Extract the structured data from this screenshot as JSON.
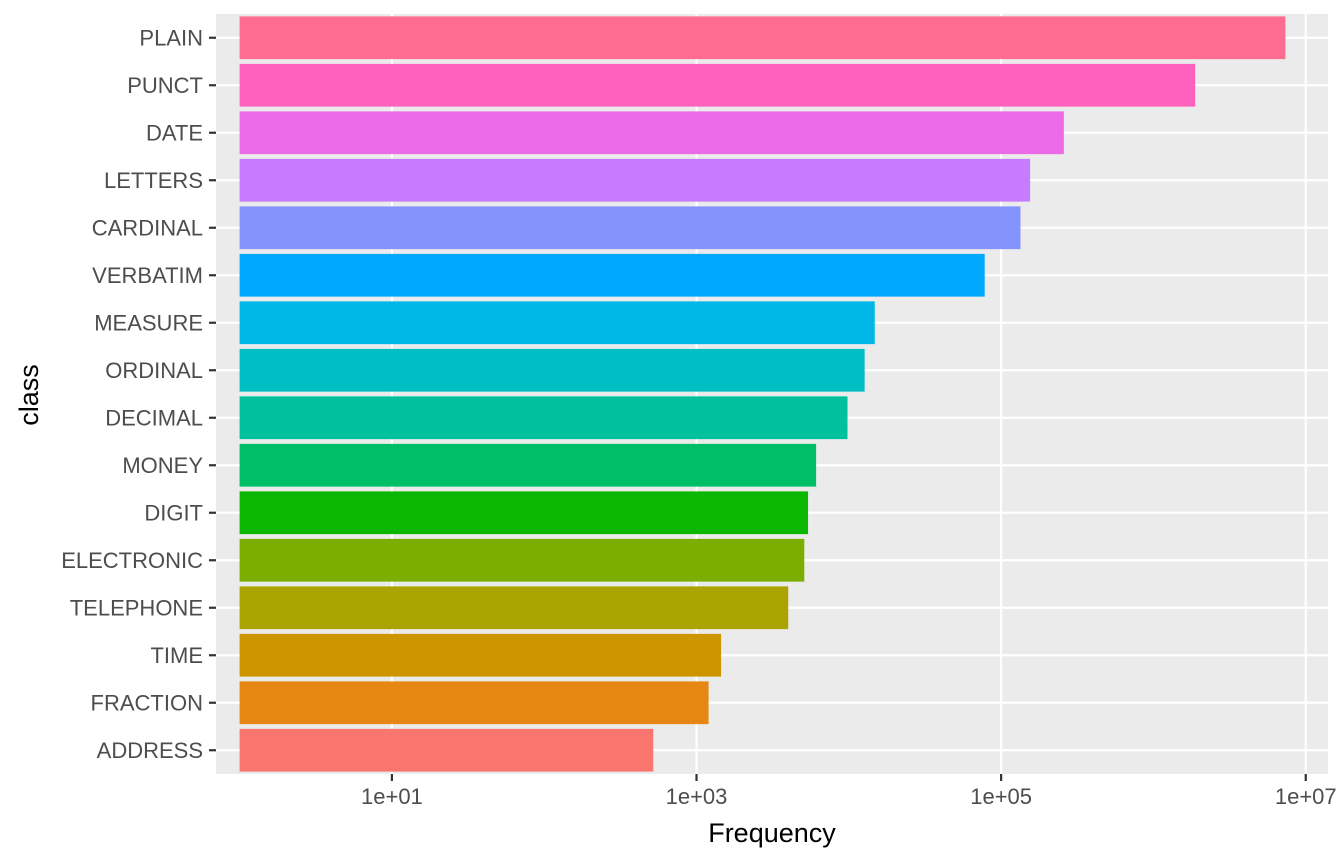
{
  "chart_data": {
    "type": "bar",
    "orientation": "horizontal",
    "xlabel": "Frequency",
    "ylabel": "class",
    "x_scale": "log10",
    "xlim": [
      0.7,
      14000000.0
    ],
    "bar_base": 1,
    "x_ticks": [
      10,
      1000,
      100000,
      10000000
    ],
    "x_tick_labels": [
      "1e+01",
      "1e+03",
      "1e+05",
      "1e+07"
    ],
    "grid": true,
    "legend": "none",
    "categories": [
      "PLAIN",
      "PUNCT",
      "DATE",
      "LETTERS",
      "CARDINAL",
      "VERBATIM",
      "MEASURE",
      "ORDINAL",
      "DECIMAL",
      "MONEY",
      "DIGIT",
      "ELECTRONIC",
      "TELEPHONE",
      "TIME",
      "FRACTION",
      "ADDRESS"
    ],
    "values": [
      7350000,
      1880000,
      258000,
      155000,
      134000,
      78000,
      14800,
      12700,
      9800,
      6100,
      5400,
      5100,
      4000,
      1450,
      1200,
      520
    ],
    "colors": [
      "#FF6C91",
      "#FF62BC",
      "#EB6AE7",
      "#C77CFF",
      "#8494FF",
      "#00A9FF",
      "#00B8E7",
      "#00BFC4",
      "#00C19C",
      "#00BE67",
      "#0CB702",
      "#7CAE00",
      "#ABA300",
      "#CD9600",
      "#E68613",
      "#F8766D"
    ]
  },
  "style": {
    "panel_bg": "#EBEBEB",
    "grid_major": "#FFFFFF",
    "tick_color": "#333333"
  }
}
